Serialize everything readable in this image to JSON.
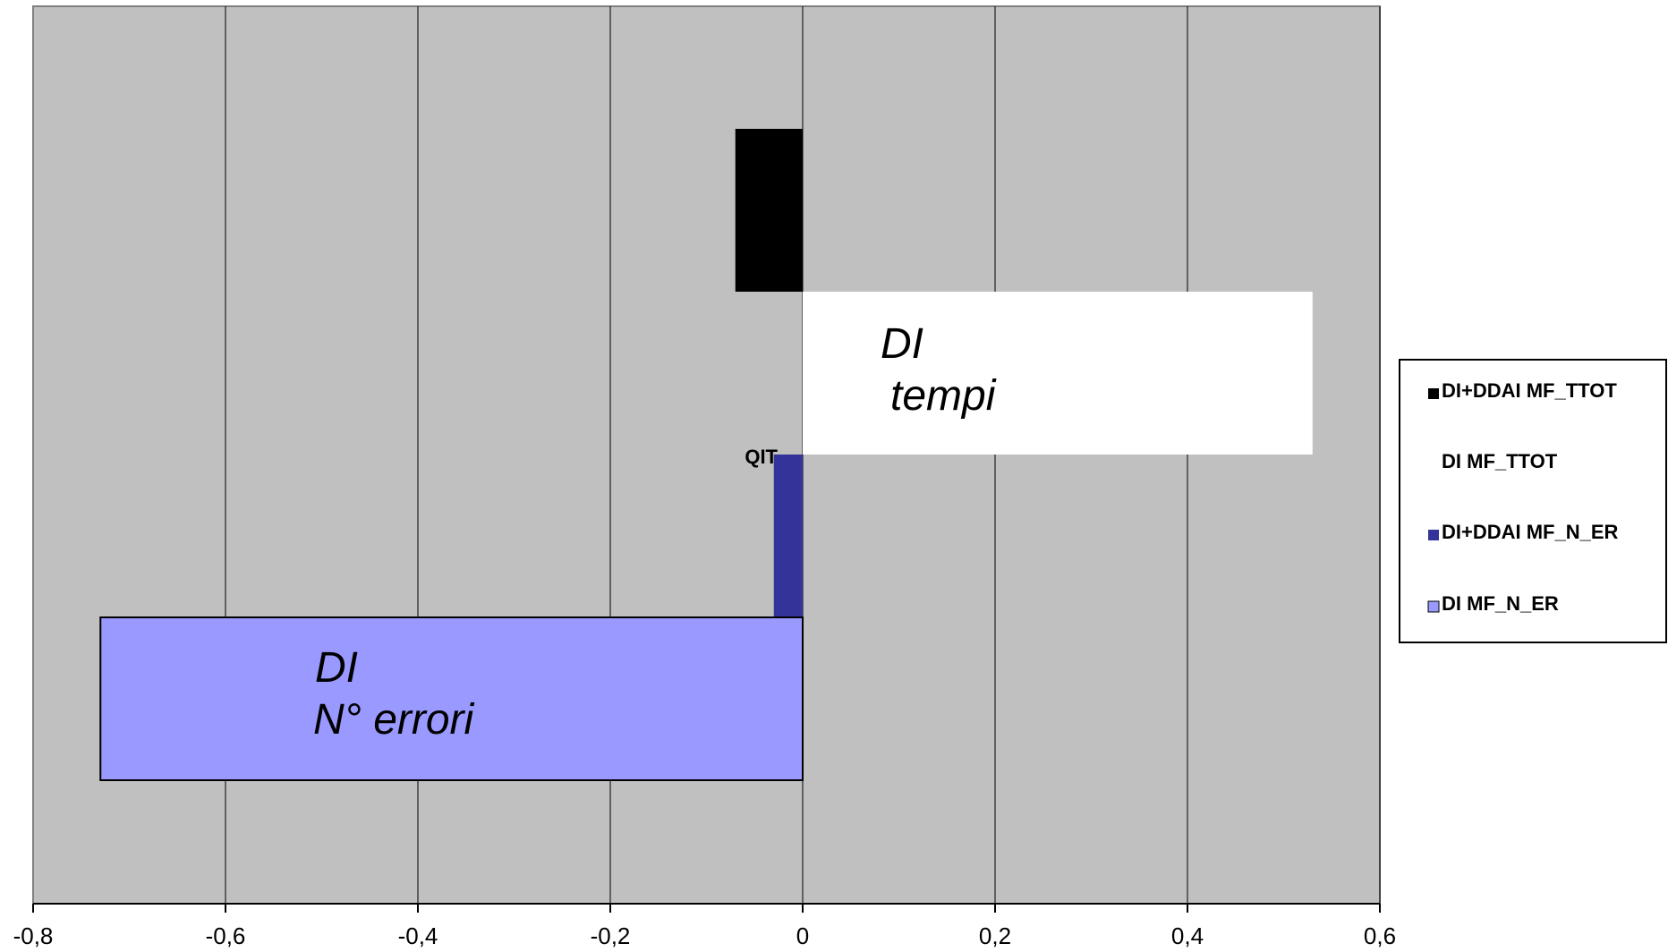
{
  "chart_data": {
    "type": "bar",
    "orientation": "horizontal",
    "xlim": [
      -0.8,
      0.6
    ],
    "x_ticks": [
      "-0,8",
      "-0,6",
      "-0,4",
      "-0,2",
      "0",
      "0,2",
      "0,4",
      "0,6"
    ],
    "x_tick_values": [
      -0.8,
      -0.6,
      -0.4,
      -0.2,
      0,
      0.2,
      0.4,
      0.6
    ],
    "grid": "vertical",
    "legend_position": "right",
    "category_label": "QIT",
    "series": [
      {
        "name": "DI+DDAI MF_TTOT",
        "value": -0.07,
        "color": "#000000"
      },
      {
        "name": "DI  MF_TTOT",
        "value": 0.53,
        "color": "#ffffff"
      },
      {
        "name": "DI+DDAI MF_N_ER",
        "value": -0.03,
        "color": "#333399"
      },
      {
        "name": "DI MF_N_ER",
        "value": -0.73,
        "color": "#9999ff"
      }
    ],
    "annotations": [
      {
        "lines": [
          "DI",
          " tempi"
        ]
      },
      {
        "lines": [
          "DI",
          "N° errori"
        ]
      }
    ]
  },
  "colors": {
    "plot_background": "#c0c0c0",
    "grid": "#000000"
  }
}
